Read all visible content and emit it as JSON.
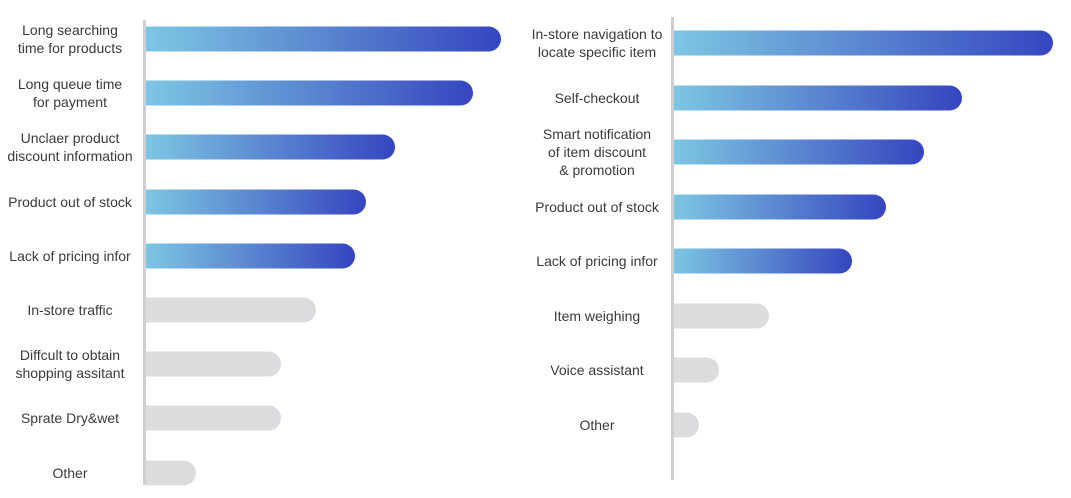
{
  "colors": {
    "gradient_start": "#7dc6e2",
    "gradient_mid": "#5a86d0",
    "gradient_end": "#3545c0",
    "muted": "#dcdcde",
    "axis": "#cfcfd2",
    "label": "#3a3a3c"
  },
  "chart_data": [
    {
      "type": "bar",
      "orientation": "horizontal",
      "categories": [
        "Long searching\ntime for products",
        "Long queue time\nfor payment",
        "Unclaer product\ndiscount information",
        "Product out of stock",
        "Lack of pricing infor",
        "In-store traffic",
        "Diffcult to obtain\nshopping assitant",
        "Sprate Dry&wet",
        "Other"
      ],
      "values": [
        100,
        92,
        70,
        62,
        59,
        48,
        38,
        38,
        14
      ],
      "highlighted": [
        true,
        true,
        true,
        true,
        true,
        false,
        false,
        false,
        false
      ],
      "xlim": [
        0,
        100
      ],
      "grid": false,
      "title": "",
      "xlabel": "",
      "ylabel": ""
    },
    {
      "type": "bar",
      "orientation": "horizontal",
      "categories": [
        "In-store navigation to\nlocate specific item",
        "Self-checkout",
        "Smart notification\nof item discount\n& promotion",
        "Product out of stock",
        "Lack of pricing infor",
        "Item weighing",
        "Voice assistant",
        "Other"
      ],
      "values": [
        100,
        76,
        66,
        56,
        47,
        25,
        12,
        5
      ],
      "highlighted": [
        true,
        true,
        true,
        true,
        true,
        false,
        false,
        false
      ],
      "xlim": [
        0,
        100
      ],
      "grid": false,
      "title": "",
      "xlabel": "",
      "ylabel": ""
    }
  ]
}
